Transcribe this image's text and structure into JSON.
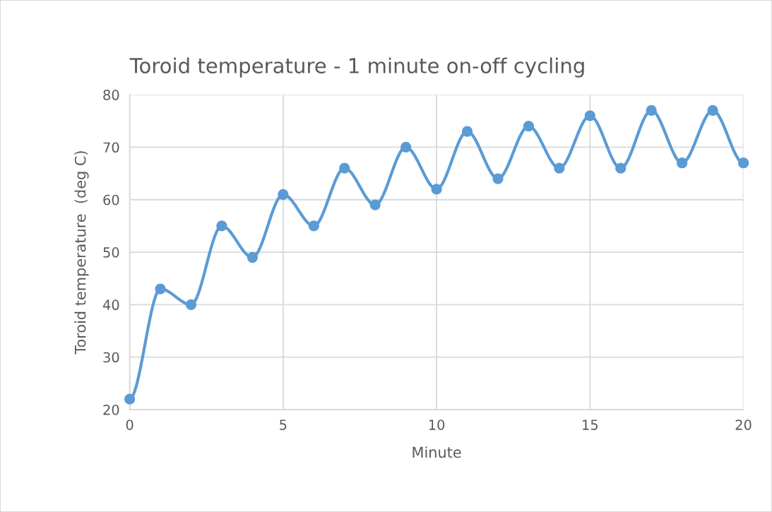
{
  "chart_data": {
    "type": "line",
    "title": "Toroid temperature - 1 minute on-off cycling",
    "xlabel": "Minute",
    "ylabel": "Toroid temperature  (deg C)",
    "x": [
      0,
      1,
      2,
      3,
      4,
      5,
      6,
      7,
      8,
      9,
      10,
      11,
      12,
      13,
      14,
      15,
      16,
      17,
      18,
      19,
      20
    ],
    "series": [
      {
        "color": "#5b9bd5",
        "values": [
          22,
          43,
          40,
          55,
          49,
          61,
          55,
          66,
          59,
          70,
          62,
          73,
          64,
          74,
          66,
          76,
          66,
          77,
          67,
          77,
          67
        ]
      }
    ],
    "xlim": [
      0,
      20
    ],
    "xticks": [
      0,
      5,
      10,
      15,
      20
    ],
    "ylim": [
      20,
      80
    ],
    "yticks": [
      20,
      30,
      40,
      50,
      60,
      70,
      80
    ],
    "grid": true,
    "marker": "circle",
    "line_style": "solid"
  }
}
